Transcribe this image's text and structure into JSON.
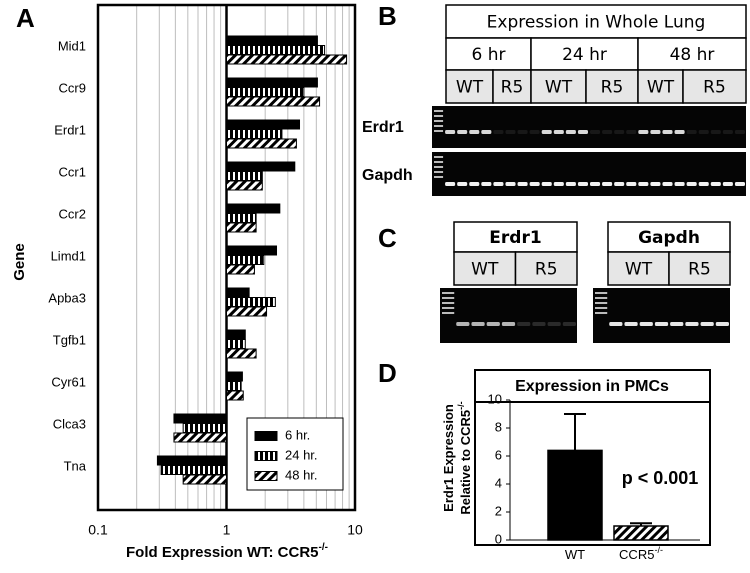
{
  "panel_letters": [
    "A",
    "B",
    "C",
    "D"
  ],
  "chart_data": [
    {
      "type": "bar",
      "orientation": "horizontal",
      "xscale": "log",
      "xlabel": "Fold Expression WT: CCR5",
      "knockout_superscript": "-/-",
      "ylabel": "Gene",
      "categories": [
        "Mid1",
        "Ccr9",
        "Erdr1",
        "Ccr1",
        "Ccr2",
        "Limd1",
        "Apba3",
        "Tgfb1",
        "Cyr61",
        "Clca3",
        "Tna"
      ],
      "series": [
        {
          "name": "6 hr.",
          "color": "#000000",
          "pattern": "solid",
          "values": [
            5.1,
            5.1,
            3.7,
            3.4,
            2.6,
            2.45,
            1.5,
            1.4,
            1.33,
            0.39,
            0.29
          ]
        },
        {
          "name": "24 hr.",
          "color": "#000000",
          "pattern": "vertical-stripes",
          "values": [
            5.8,
            4.0,
            2.7,
            1.9,
            1.7,
            1.95,
            2.4,
            1.4,
            1.3,
            0.46,
            0.31
          ]
        },
        {
          "name": "48 hr.",
          "color": "#000000",
          "pattern": "diagonal-hatch",
          "values": [
            8.6,
            5.3,
            3.5,
            1.9,
            1.7,
            1.65,
            2.05,
            1.7,
            1.35,
            0.39,
            0.46
          ]
        }
      ],
      "xlim": [
        0.1,
        10
      ],
      "xticks": [
        0.1,
        1,
        10
      ],
      "minor_xticks": [
        0.2,
        0.3,
        0.4,
        0.5,
        0.6,
        0.7,
        0.8,
        0.9,
        2,
        3,
        4,
        5,
        6,
        7,
        8,
        9
      ],
      "grid": true,
      "legend": "lower right"
    },
    {
      "type": "bar",
      "title": "Expression in PMCs",
      "ylabel_lines": [
        "Erdr1 Expression",
        "Relative to CCR5"
      ],
      "knockout_superscript": "-/-",
      "categories": [
        "WT",
        "CCR5"
      ],
      "superscript_categories": [
        1
      ],
      "values": [
        6.4,
        1.0
      ],
      "errors": [
        2.6,
        0.2
      ],
      "color": "#000000",
      "patterns": [
        "solid",
        "diagonal-hatch"
      ],
      "ylim": [
        0,
        10
      ],
      "yticks": [
        0,
        2,
        4,
        6,
        8,
        10
      ],
      "annotation": "p < 0.001"
    }
  ],
  "gel_b": {
    "title": "Expression in Whole Lung",
    "times": [
      "6 hr",
      "24 hr",
      "48 hr"
    ],
    "genotypes": [
      "WT",
      "R5",
      "WT",
      "R5",
      "WT",
      "R5"
    ],
    "rows": [
      "Erdr1",
      "Gapdh"
    ]
  },
  "gel_c": [
    {
      "title": "Erdr1",
      "genotypes": [
        "WT",
        "R5"
      ]
    },
    {
      "title": "Gapdh",
      "genotypes": [
        "WT",
        "R5"
      ]
    }
  ]
}
